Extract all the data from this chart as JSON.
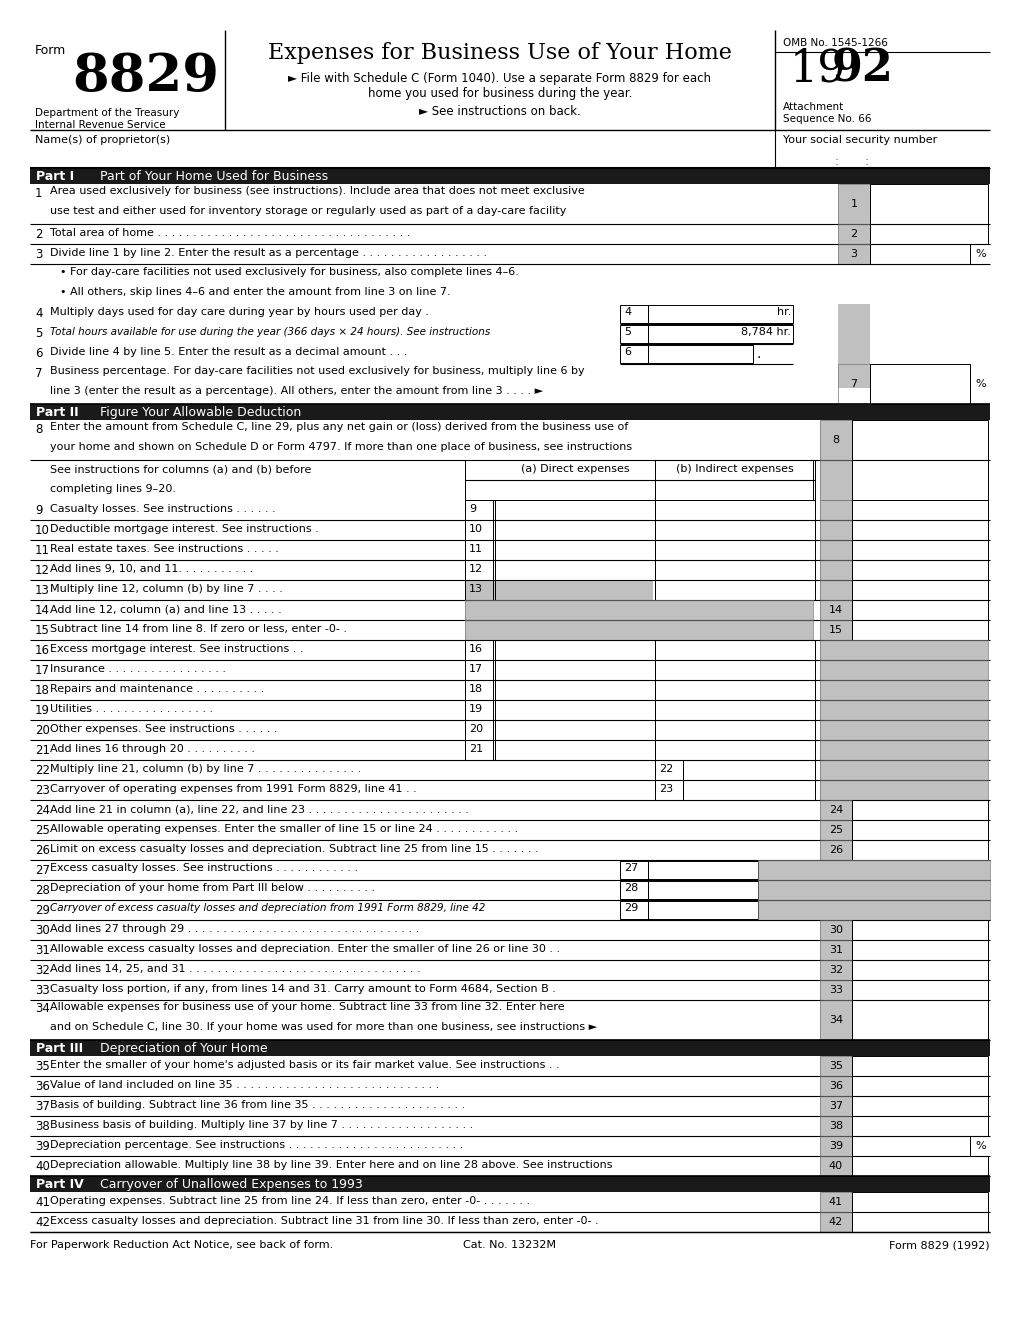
{
  "title": "Expenses for Business Use of Your Home",
  "subtitle1": "► File with Schedule C (Form 1040). Use a separate Form 8829 for each",
  "subtitle2": "home you used for business during the year.",
  "subtitle3": "► See instructions on back.",
  "form_number": "8829",
  "omb": "OMB No. 1545-1266",
  "dept": "Department of the Treasury",
  "irs": "Internal Revenue Service",
  "background": "#ffffff",
  "part1_title": "Part of Your Home Used for Business",
  "part2_title": "Figure Your Allowable Deduction",
  "part3_title": "Depreciation of Your Home",
  "part4_title": "Carryover of Unallowed Expenses to 1993",
  "footer": "For Paperwork Reduction Act Notice, see back of form.",
  "cat": "Cat. No. 13232M",
  "form_footer": "Form 8829 (1992)",
  "gray_box": "#c0c0c0",
  "dark_gray": "#a0a0a0",
  "part_bg": "#1a1a1a",
  "lh": 20
}
